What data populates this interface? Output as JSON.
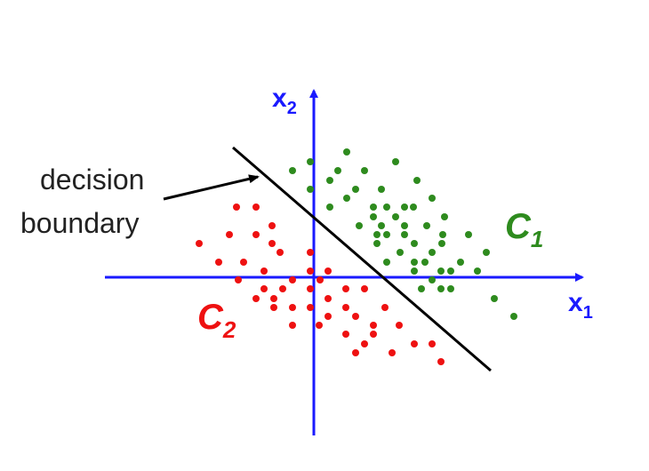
{
  "annotation": {
    "line1": "decision",
    "line2": "boundary"
  },
  "axes": {
    "x_label": "x",
    "x_subscript": "1",
    "y_label": "x",
    "y_subscript": "2"
  },
  "classes": {
    "c1_label": "C",
    "c1_subscript": "1",
    "c2_label": "C",
    "c2_subscript": "2"
  },
  "colors": {
    "axis": "#1a1aff",
    "class1": "#2e8b1e",
    "class2": "#ee1111",
    "boundary": "#000000",
    "text": "#222222"
  }
}
